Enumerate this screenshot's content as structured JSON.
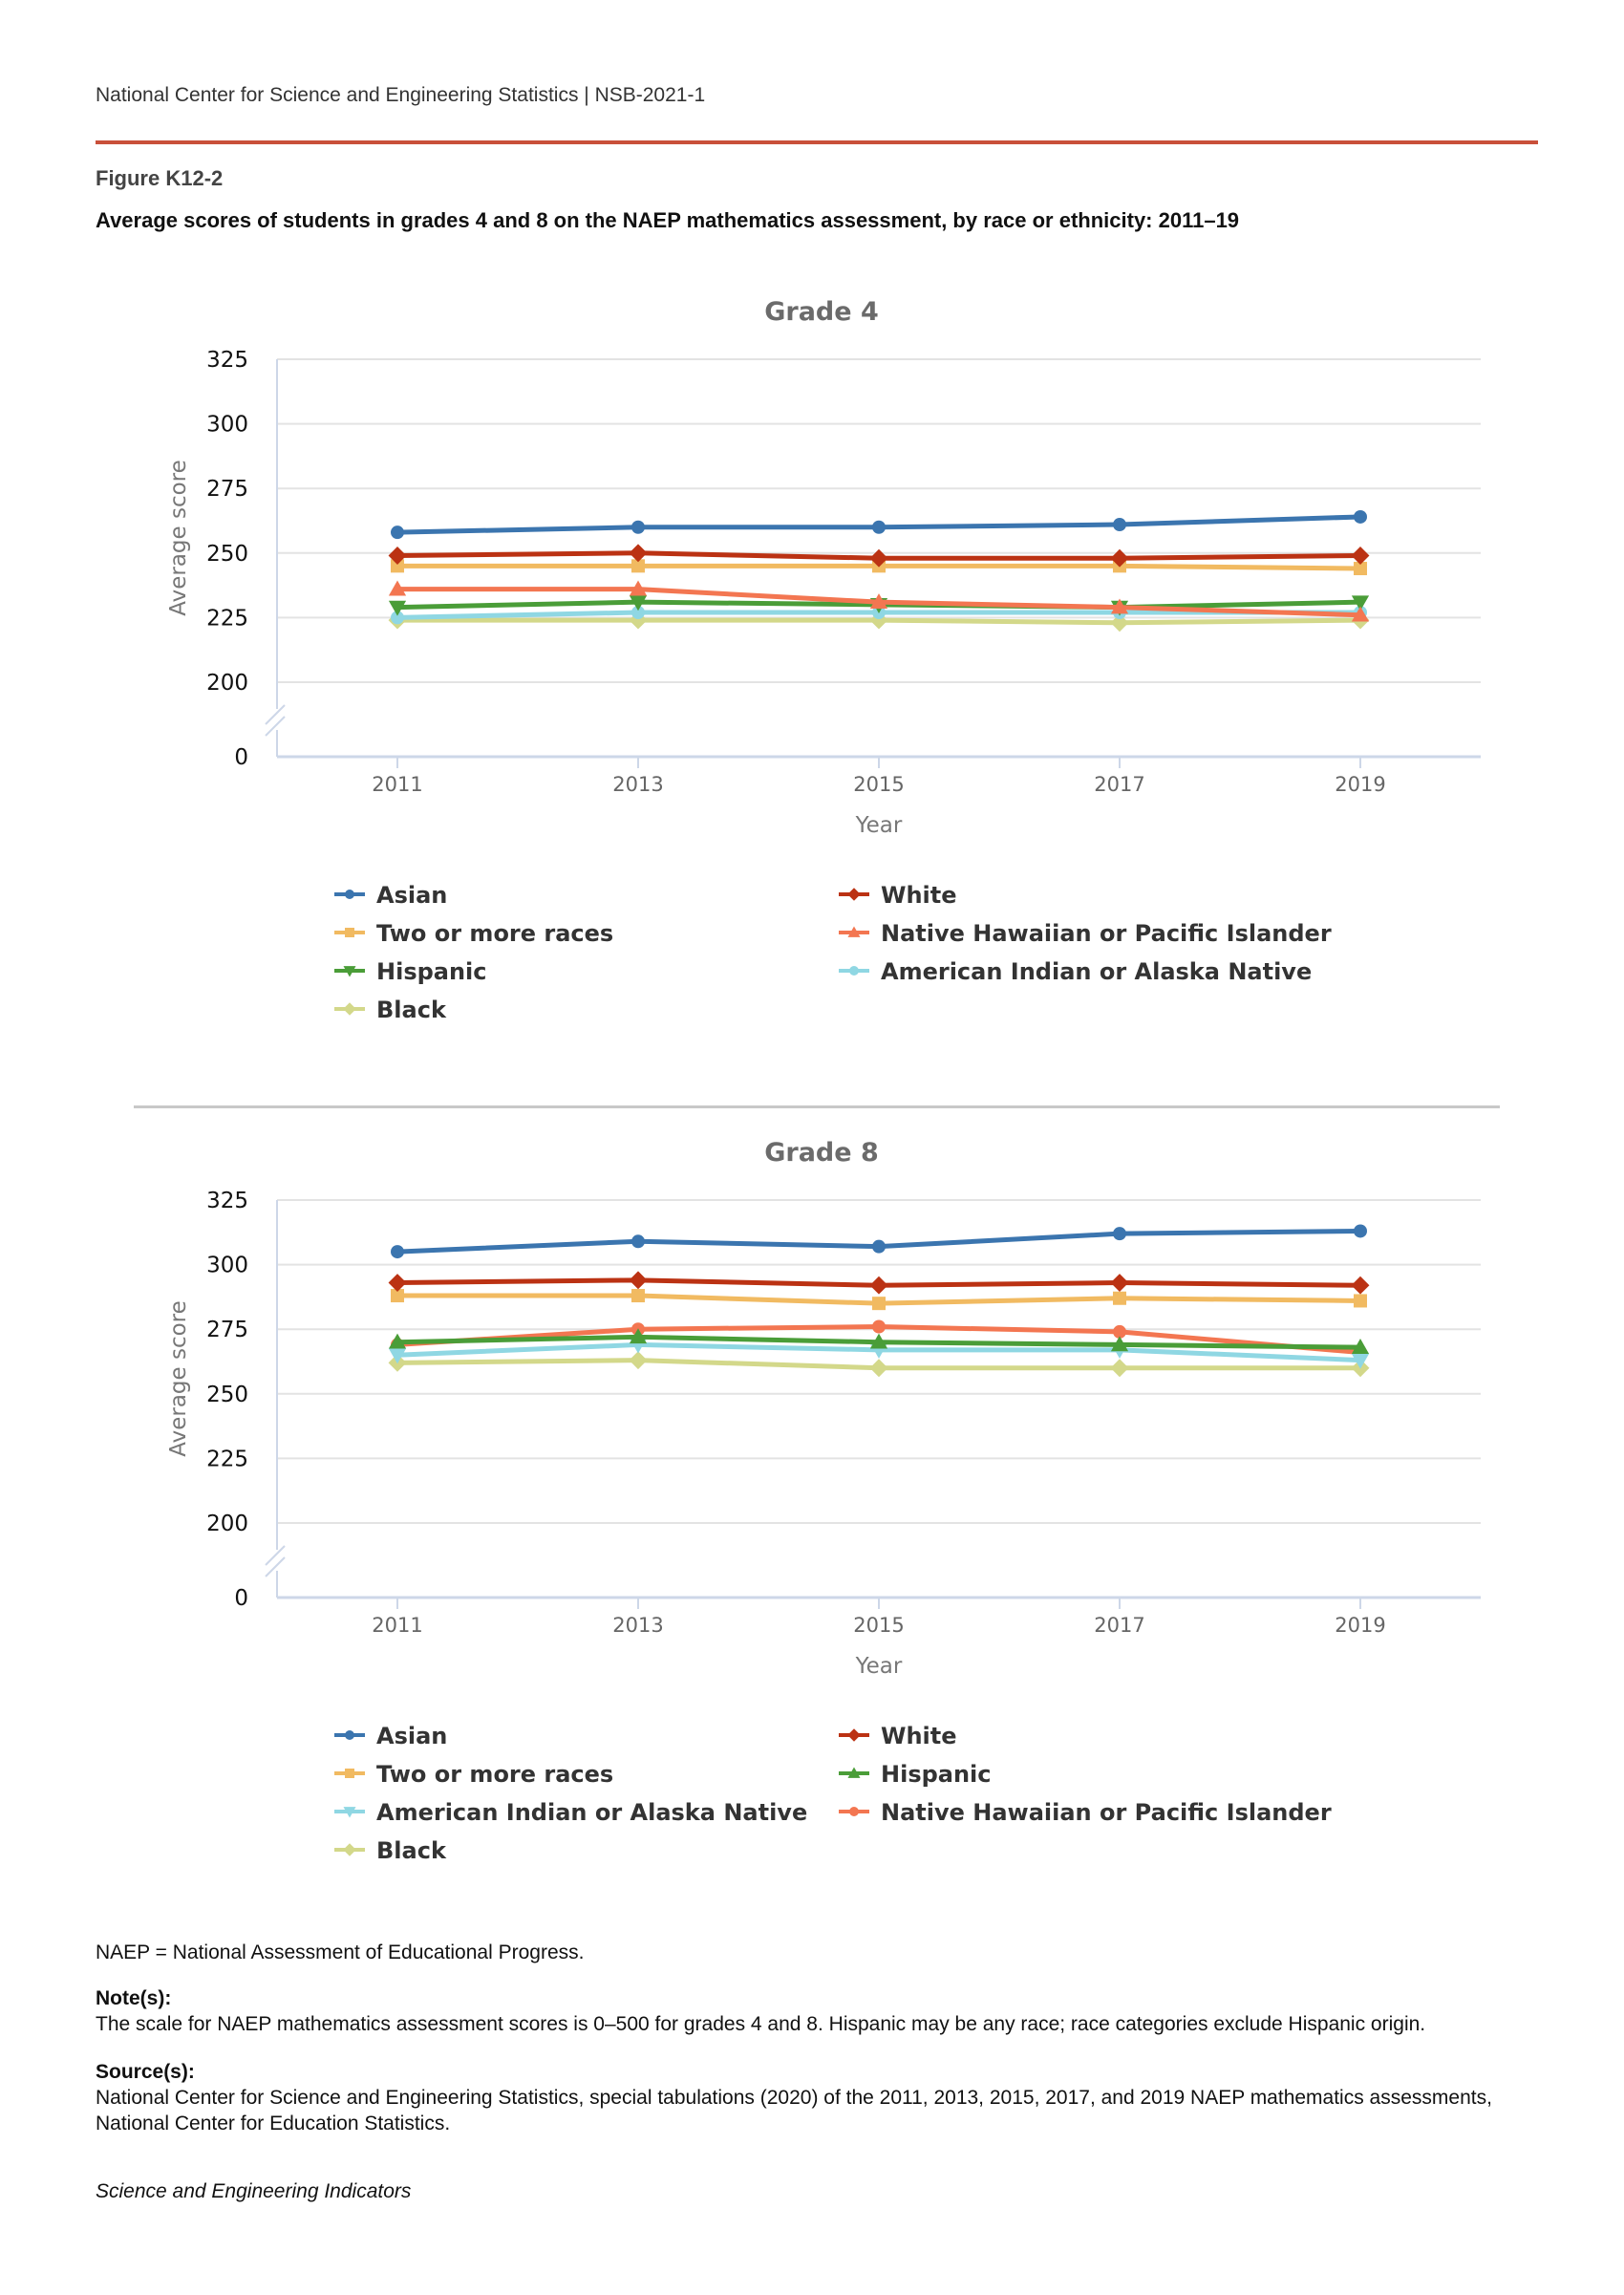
{
  "header": {
    "org": "National Center for Science and Engineering Statistics  |  NSB-2021-1",
    "figure_label": "Figure K12-2",
    "figure_title": "Average scores of students in grades 4 and 8 on the NAEP mathematics assessment, by race or ethnicity: 2011–19"
  },
  "chart_data": [
    {
      "type": "line",
      "title": "Grade 4",
      "xlabel": "Year",
      "ylabel": "Average score",
      "x": [
        "2011",
        "2013",
        "2015",
        "2017",
        "2019"
      ],
      "ylim": [
        200,
        325
      ],
      "yticks": [
        "325",
        "300",
        "275",
        "250",
        "225",
        "200",
        "0"
      ],
      "axis_break": "between 0 and 200",
      "grid": true,
      "legend_placement": "bottom",
      "series": [
        {
          "name": "Asian",
          "color": "#3b75af",
          "marker": "circle",
          "values": [
            258,
            260,
            260,
            261,
            264
          ]
        },
        {
          "name": "White",
          "color": "#bb3213",
          "marker": "diamond",
          "values": [
            249,
            250,
            248,
            248,
            249
          ]
        },
        {
          "name": "Two or more races",
          "color": "#f1ba61",
          "marker": "square",
          "values": [
            245,
            245,
            245,
            245,
            244
          ]
        },
        {
          "name": "Native Hawaiian or Pacific Islander",
          "color": "#f37651",
          "marker": "triangle-up",
          "values": [
            236,
            236,
            231,
            229,
            226
          ]
        },
        {
          "name": "Hispanic",
          "color": "#4a9d38",
          "marker": "triangle-down",
          "values": [
            229,
            231,
            230,
            229,
            231
          ]
        },
        {
          "name": "American Indian or Alaska Native",
          "color": "#8fd7e3",
          "marker": "circle",
          "values": [
            225,
            227,
            227,
            227,
            227
          ]
        },
        {
          "name": "Black",
          "color": "#d3d88a",
          "marker": "diamond",
          "values": [
            224,
            224,
            224,
            223,
            224
          ]
        }
      ]
    },
    {
      "type": "line",
      "title": "Grade 8",
      "xlabel": "Year",
      "ylabel": "Average score",
      "x": [
        "2011",
        "2013",
        "2015",
        "2017",
        "2019"
      ],
      "ylim": [
        200,
        325
      ],
      "yticks": [
        "325",
        "300",
        "275",
        "250",
        "225",
        "200",
        "0"
      ],
      "axis_break": "between 0 and 200",
      "grid": true,
      "legend_placement": "bottom",
      "series": [
        {
          "name": "Asian",
          "color": "#3b75af",
          "marker": "circle",
          "values": [
            305,
            309,
            307,
            312,
            313
          ]
        },
        {
          "name": "White",
          "color": "#bb3213",
          "marker": "diamond",
          "values": [
            293,
            294,
            292,
            293,
            292
          ]
        },
        {
          "name": "Two or more races",
          "color": "#f1ba61",
          "marker": "square",
          "values": [
            288,
            288,
            285,
            287,
            286
          ]
        },
        {
          "name": "Hispanic",
          "color": "#4a9d38",
          "marker": "triangle-up",
          "values": [
            270,
            272,
            270,
            269,
            268
          ]
        },
        {
          "name": "American Indian or Alaska Native",
          "color": "#8fd7e3",
          "marker": "triangle-down",
          "values": [
            265,
            269,
            267,
            267,
            263
          ]
        },
        {
          "name": "Native Hawaiian or Pacific Islander",
          "color": "#f37651",
          "marker": "circle",
          "values": [
            269,
            275,
            276,
            274,
            266
          ]
        },
        {
          "name": "Black",
          "color": "#d3d88a",
          "marker": "diamond",
          "values": [
            262,
            263,
            260,
            260,
            260
          ]
        }
      ]
    }
  ],
  "footer": {
    "abbrev": "NAEP = National Assessment of Educational Progress.",
    "notes_label": "Note(s):",
    "notes_text": "The scale for NAEP mathematics assessment scores is 0–500 for grades 4 and 8. Hispanic may be any race; race categories exclude Hispanic origin.",
    "sources_label": "Source(s):",
    "sources_text": "National Center for Science and Engineering Statistics, special tabulations (2020) of the 2011, 2013, 2015, 2017, and 2019 NAEP mathematics assessments, National Center for Education Statistics.",
    "publication": "Science and Engineering Indicators"
  }
}
